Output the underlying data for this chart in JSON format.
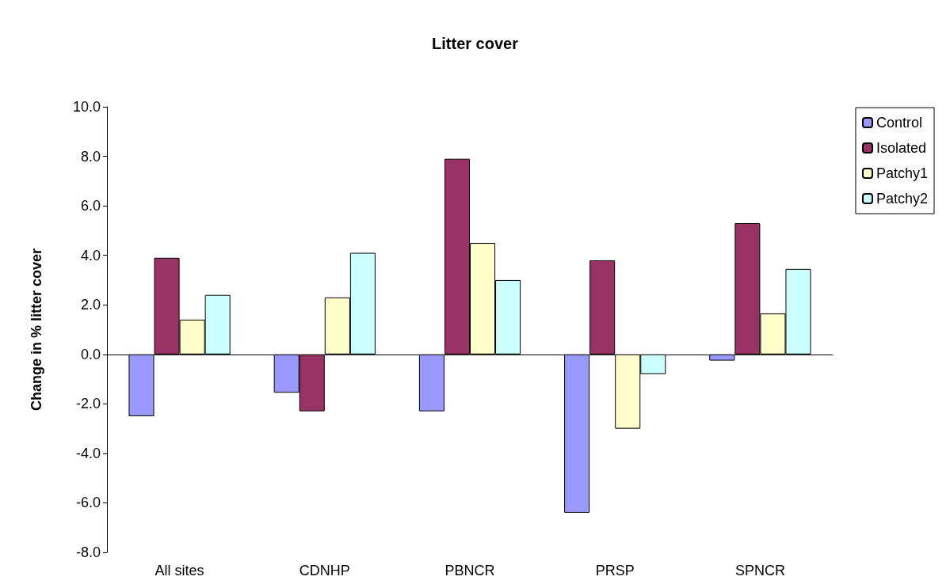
{
  "chart_data": {
    "type": "bar",
    "title": "Litter cover",
    "ylabel": "Change in % litter cover",
    "categories": [
      "All sites",
      "CDNHP",
      "PBNCR",
      "PRSP",
      "SPNCR"
    ],
    "series": [
      {
        "name": "Control",
        "color": "#9999ff",
        "values": [
          -2.5,
          -1.55,
          -2.3,
          -6.4,
          -0.25
        ]
      },
      {
        "name": "Isolated",
        "color": "#993366",
        "values": [
          3.9,
          -2.3,
          7.9,
          3.8,
          5.3
        ]
      },
      {
        "name": "Patchy1",
        "color": "#ffffcc",
        "values": [
          1.4,
          2.3,
          4.5,
          -3.0,
          1.65
        ]
      },
      {
        "name": "Patchy2",
        "color": "#ccffff",
        "values": [
          2.4,
          4.1,
          3.0,
          -0.8,
          3.45
        ]
      }
    ],
    "ylim": [
      -8,
      10
    ],
    "yticks": [
      {
        "value": -8,
        "label": "-8.0"
      },
      {
        "value": -6,
        "label": "-6.0"
      },
      {
        "value": -4,
        "label": "-4.0"
      },
      {
        "value": -2,
        "label": "-2.0"
      },
      {
        "value": 0,
        "label": "0.0"
      },
      {
        "value": 2,
        "label": "2.0"
      },
      {
        "value": 4,
        "label": "4.0"
      },
      {
        "value": 6,
        "label": "6.0"
      },
      {
        "value": 8,
        "label": "8.0"
      },
      {
        "value": 10,
        "label": "10.0"
      }
    ],
    "legend": "right"
  }
}
